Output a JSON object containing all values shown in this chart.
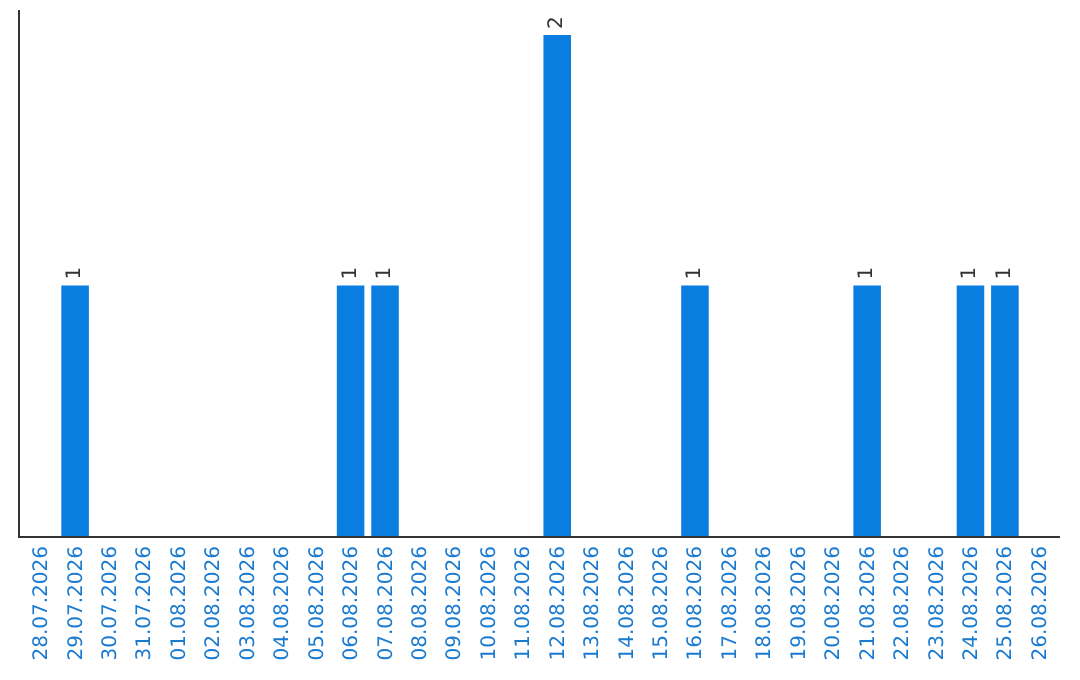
{
  "chart_data": {
    "type": "bar",
    "categories": [
      "28.07.2026",
      "29.07.2026",
      "30.07.2026",
      "31.07.2026",
      "01.08.2026",
      "02.08.2026",
      "03.08.2026",
      "04.08.2026",
      "05.08.2026",
      "06.08.2026",
      "07.08.2026",
      "08.08.2026",
      "09.08.2026",
      "10.08.2026",
      "11.08.2026",
      "12.08.2026",
      "13.08.2026",
      "14.08.2026",
      "15.08.2026",
      "16.08.2026",
      "17.08.2026",
      "18.08.2026",
      "19.08.2026",
      "20.08.2026",
      "21.08.2026",
      "22.08.2026",
      "23.08.2026",
      "24.08.2026",
      "25.08.2026",
      "26.08.2026"
    ],
    "values": [
      0,
      1,
      0,
      0,
      0,
      0,
      0,
      0,
      0,
      1,
      1,
      0,
      0,
      0,
      0,
      2,
      0,
      0,
      0,
      1,
      0,
      0,
      0,
      0,
      1,
      0,
      0,
      1,
      1,
      0
    ],
    "value_labels": [
      null,
      "1",
      null,
      null,
      null,
      null,
      null,
      null,
      null,
      "1",
      "1",
      null,
      null,
      null,
      null,
      "2",
      null,
      null,
      null,
      "1",
      null,
      null,
      null,
      null,
      "1",
      null,
      null,
      "1",
      "1",
      null
    ],
    "color": "#0a7ee0",
    "ylim": [
      0,
      2.1
    ],
    "tick_labels": "x",
    "grid": false,
    "legend": false
  }
}
